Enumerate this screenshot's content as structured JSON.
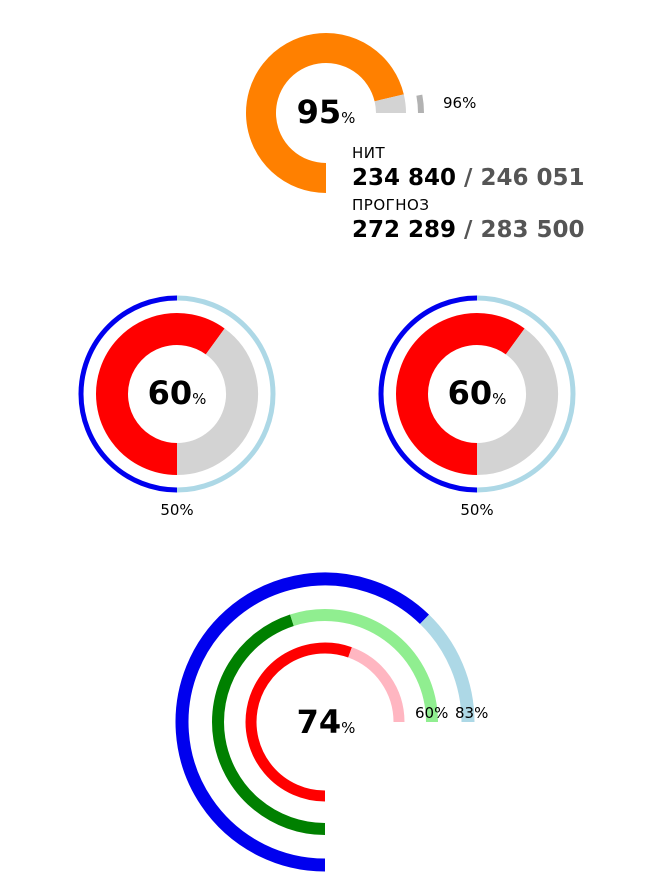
{
  "chart_data": [
    {
      "type": "radial-gauge",
      "center_value": "95",
      "center_unit": "%",
      "inner": {
        "percent": 95,
        "color": "#ff8000",
        "track": "#d3d3d3"
      },
      "outer": {
        "percent": 96,
        "color": "#ffffff",
        "track": "#b2b2b2"
      },
      "outer_label": "96%",
      "info": [
        {
          "title": "НИТ",
          "value": "234 840",
          "separator": " / ",
          "total": "246 051"
        },
        {
          "title": "ПРОГНОЗ",
          "value": "272 289",
          "separator": " / ",
          "total": "283 500"
        }
      ]
    },
    {
      "type": "radial-gauge",
      "center_value": "60",
      "center_unit": "%",
      "inner": {
        "percent": 60,
        "color": "#ff0000",
        "track": "#d3d3d3"
      },
      "outer": {
        "percent": 50,
        "color": "#0000ee",
        "track": "#add8e6"
      },
      "outer_label": "50%"
    },
    {
      "type": "radial-gauge",
      "center_value": "60",
      "center_unit": "%",
      "inner": {
        "percent": 60,
        "color": "#ff0000",
        "track": "#d3d3d3"
      },
      "outer": {
        "percent": 50,
        "color": "#0000ee",
        "track": "#add8e6"
      },
      "outer_label": "50%"
    },
    {
      "type": "radial-gauge",
      "center_value": "74",
      "center_unit": "%",
      "rings": [
        {
          "percent": 74,
          "color": "#ff0000",
          "track": "#ffb6c1"
        },
        {
          "percent": 60,
          "color": "#008000",
          "track": "#90ee90"
        },
        {
          "percent": 83,
          "color": "#0000ee",
          "track": "#add8e6"
        }
      ],
      "ring_labels": [
        "60%",
        "83%"
      ]
    }
  ]
}
